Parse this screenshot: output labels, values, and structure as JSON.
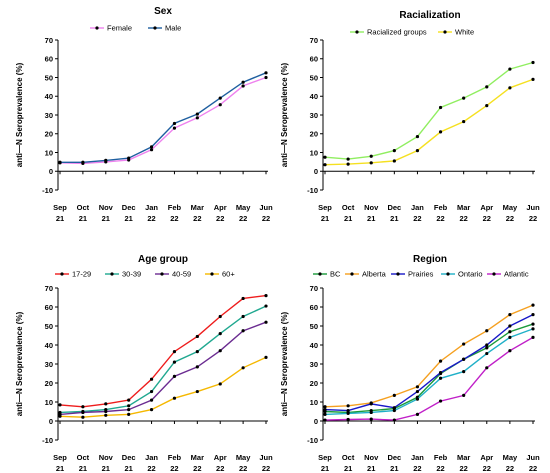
{
  "chart_data": [
    {
      "type": "line",
      "title": "Sex",
      "ylabel": "anti—N Seroprevalence (%)",
      "xlabel": "",
      "categories": [
        [
          "Sep",
          "21"
        ],
        [
          "Oct",
          "21"
        ],
        [
          "Nov",
          "21"
        ],
        [
          "Dec",
          "21"
        ],
        [
          "Jan",
          "22"
        ],
        [
          "Feb",
          "22"
        ],
        [
          "Mar",
          "22"
        ],
        [
          "Apr",
          "22"
        ],
        [
          "May",
          "22"
        ],
        [
          "Jun",
          "22"
        ]
      ],
      "ylim": [
        -10,
        70
      ],
      "yticks": [
        -10,
        0,
        10,
        20,
        30,
        40,
        50,
        60,
        70
      ],
      "legend": "top-left",
      "series": [
        {
          "name": "Female",
          "color": "#ee82ee",
          "values": [
            4.5,
            4.2,
            5.0,
            6.0,
            11.5,
            23.0,
            28.5,
            35.5,
            45.5,
            50.0
          ]
        },
        {
          "name": "Male",
          "color": "#1f5fa0",
          "values": [
            4.8,
            4.8,
            5.8,
            7.0,
            13.0,
            25.5,
            30.5,
            39.0,
            47.5,
            52.5
          ]
        }
      ]
    },
    {
      "type": "line",
      "title": "Racialization",
      "ylabel": "anti—N Seroprevalence (%)",
      "xlabel": "",
      "categories": [
        [
          "Sep",
          "21"
        ],
        [
          "Oct",
          "21"
        ],
        [
          "Nov",
          "21"
        ],
        [
          "Dec",
          "21"
        ],
        [
          "Jan",
          "22"
        ],
        [
          "Feb",
          "22"
        ],
        [
          "Mar",
          "22"
        ],
        [
          "Apr",
          "22"
        ],
        [
          "May",
          "22"
        ],
        [
          "Jun",
          "22"
        ]
      ],
      "ylim": [
        -10,
        70
      ],
      "yticks": [
        -10,
        0,
        10,
        20,
        30,
        40,
        50,
        60,
        70
      ],
      "legend": "top-left",
      "series": [
        {
          "name": "Racialized groups",
          "color": "#90ee60",
          "values": [
            7.5,
            6.5,
            8.0,
            11.0,
            18.5,
            34.0,
            39.0,
            45.0,
            54.5,
            58.0
          ]
        },
        {
          "name": "White",
          "color": "#f5e020",
          "values": [
            3.5,
            3.8,
            4.5,
            5.5,
            11.0,
            21.0,
            26.5,
            35.0,
            44.5,
            49.0
          ]
        }
      ]
    },
    {
      "type": "line",
      "title": "Age group",
      "ylabel": "anti—N Seroprevalence (%)",
      "xlabel": "",
      "categories": [
        [
          "Sep",
          "21"
        ],
        [
          "Oct",
          "21"
        ],
        [
          "Nov",
          "21"
        ],
        [
          "Dec",
          "21"
        ],
        [
          "Jan",
          "22"
        ],
        [
          "Feb",
          "22"
        ],
        [
          "Mar",
          "22"
        ],
        [
          "Apr",
          "22"
        ],
        [
          "May",
          "22"
        ],
        [
          "Jun",
          "22"
        ]
      ],
      "ylim": [
        -10,
        70
      ],
      "yticks": [
        -10,
        0,
        10,
        20,
        30,
        40,
        50,
        60,
        70
      ],
      "legend": "top-left",
      "series": [
        {
          "name": "17-29",
          "color": "#ee1c1c",
          "values": [
            8.5,
            7.5,
            9.0,
            11.0,
            22.0,
            36.5,
            44.5,
            55.0,
            64.5,
            66.0
          ]
        },
        {
          "name": "30-39",
          "color": "#20a890",
          "values": [
            4.5,
            5.0,
            6.0,
            8.0,
            15.5,
            31.0,
            36.5,
            46.0,
            55.0,
            60.5
          ]
        },
        {
          "name": "40-59",
          "color": "#6b2c91",
          "values": [
            3.5,
            4.5,
            5.0,
            6.0,
            11.0,
            23.5,
            28.5,
            37.0,
            47.5,
            52.0
          ]
        },
        {
          "name": "60+",
          "color": "#f5b800",
          "values": [
            2.5,
            2.0,
            3.0,
            3.5,
            6.0,
            12.0,
            15.5,
            19.5,
            28.0,
            33.5
          ]
        }
      ]
    },
    {
      "type": "line",
      "title": "Region",
      "ylabel": "anti—N Seroprevalence (%)",
      "xlabel": "",
      "categories": [
        [
          "Sep",
          "21"
        ],
        [
          "Oct",
          "21"
        ],
        [
          "Nov",
          "21"
        ],
        [
          "Dec",
          "21"
        ],
        [
          "Jan",
          "22"
        ],
        [
          "Feb",
          "22"
        ],
        [
          "Mar",
          "22"
        ],
        [
          "Apr",
          "22"
        ],
        [
          "May",
          "22"
        ],
        [
          "Jun",
          "22"
        ]
      ],
      "ylim": [
        -10,
        70
      ],
      "yticks": [
        -10,
        0,
        10,
        20,
        30,
        40,
        50,
        60,
        70
      ],
      "legend": "top-left",
      "series": [
        {
          "name": "BC",
          "color": "#1a9a3a",
          "values": [
            5.0,
            4.5,
            5.5,
            6.5,
            12.5,
            25.0,
            32.5,
            38.5,
            47.0,
            51.0
          ]
        },
        {
          "name": "Alberta",
          "color": "#f5a020",
          "values": [
            7.5,
            8.0,
            9.5,
            13.5,
            18.0,
            31.5,
            40.5,
            47.5,
            56.0,
            61.0
          ]
        },
        {
          "name": "Prairies",
          "color": "#1818c8",
          "values": [
            6.0,
            5.5,
            9.0,
            7.0,
            15.5,
            25.5,
            32.5,
            40.0,
            50.0,
            56.0
          ]
        },
        {
          "name": "Ontario",
          "color": "#20b0c8",
          "values": [
            3.5,
            4.0,
            4.5,
            5.5,
            11.5,
            22.5,
            26.0,
            35.5,
            44.0,
            48.5
          ]
        },
        {
          "name": "Atlantic",
          "color": "#c020c8",
          "values": [
            0.5,
            0.8,
            1.0,
            0.5,
            3.5,
            10.5,
            13.5,
            28.0,
            37.0,
            44.0
          ]
        }
      ]
    }
  ]
}
